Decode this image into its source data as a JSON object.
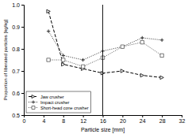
{
  "chart_data": {
    "type": "line",
    "x_label": "Particle size [mm]",
    "y_label": "Proportion of liberated particles [kg/kg]",
    "x": [
      5,
      8,
      12,
      16,
      20,
      24,
      28
    ],
    "series": [
      {
        "name": "Jaw crusher",
        "color": "#000000",
        "marker": "triangle-right",
        "line_style": "dashed",
        "values": [
          0.97,
          0.73,
          0.71,
          0.69,
          0.7,
          0.68,
          0.67
        ]
      },
      {
        "name": "Impact crusher",
        "color": "#333333",
        "marker": "plus",
        "line_style": "dotted",
        "values": [
          0.88,
          0.77,
          0.75,
          0.79,
          0.81,
          0.85,
          0.84
        ]
      },
      {
        "name": "Short-head cone crusher",
        "color": "#555555",
        "marker": "square",
        "line_style": "dotted",
        "values": [
          0.75,
          0.75,
          0.72,
          0.76,
          0.81,
          0.83,
          0.77
        ]
      }
    ],
    "vlines": [
      {
        "x": 16,
        "color": "#000000"
      }
    ],
    "xlim": [
      0,
      32
    ],
    "ylim": [
      0.5,
      1.0
    ],
    "xticks": [
      0,
      4,
      8,
      12,
      16,
      20,
      24,
      28,
      32
    ],
    "yticks": [
      0.5,
      0.6,
      0.7,
      0.8,
      0.9,
      {
        "value": 1.0,
        "label": "1.0"
      }
    ],
    "grid": false,
    "legend": "lower left"
  }
}
